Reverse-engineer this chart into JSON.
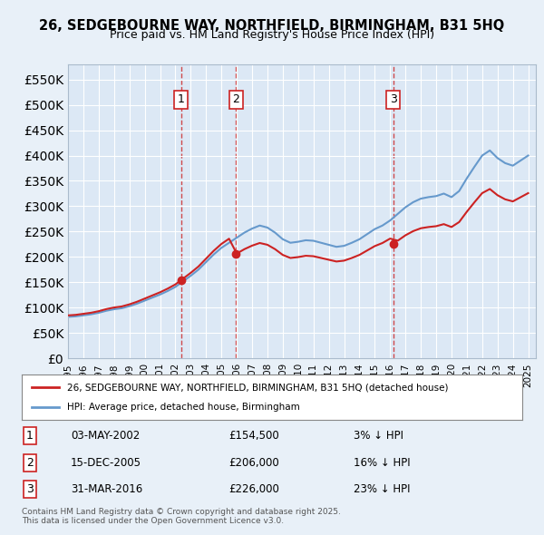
{
  "title": "26, SEDGEBOURNE WAY, NORTHFIELD, BIRMINGHAM, B31 5HQ",
  "subtitle": "Price paid vs. HM Land Registry's House Price Index (HPI)",
  "ylabel": "",
  "background_color": "#e8f0f8",
  "plot_bg_color": "#dce8f5",
  "sale_dates": [
    "2002-05-03",
    "2005-12-15",
    "2016-03-31"
  ],
  "sale_prices": [
    154500,
    206000,
    226000
  ],
  "sale_labels": [
    "1",
    "2",
    "3"
  ],
  "legend_line1": "26, SEDGEBOURNE WAY, NORTHFIELD, BIRMINGHAM, B31 5HQ (detached house)",
  "legend_line2": "HPI: Average price, detached house, Birmingham",
  "table_data": [
    [
      "1",
      "03-MAY-2002",
      "£154,500",
      "3% ↓ HPI"
    ],
    [
      "2",
      "15-DEC-2005",
      "£206,000",
      "16% ↓ HPI"
    ],
    [
      "3",
      "31-MAR-2016",
      "£226,000",
      "23% ↓ HPI"
    ]
  ],
  "footer": "Contains HM Land Registry data © Crown copyright and database right 2025.\nThis data is licensed under the Open Government Licence v3.0.",
  "hpi_color": "#6699cc",
  "price_color": "#cc2222",
  "dashed_line_color": "#cc2222",
  "ylim": [
    0,
    580000
  ],
  "yticks": [
    0,
    50000,
    100000,
    150000,
    200000,
    250000,
    300000,
    350000,
    400000,
    450000,
    500000,
    550000
  ]
}
